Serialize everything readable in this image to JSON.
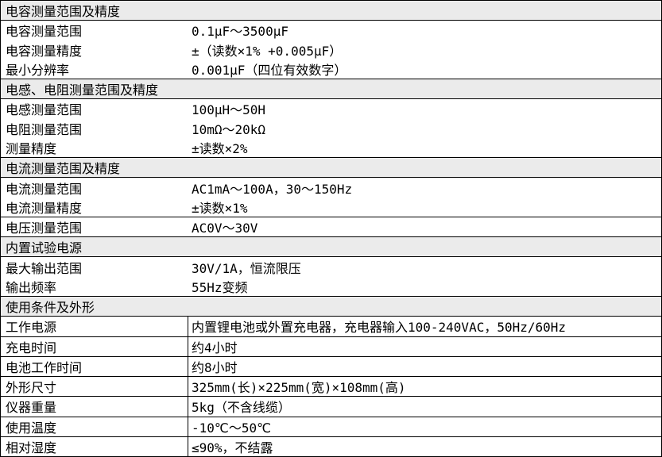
{
  "colors": {
    "header_bg": "#ebebeb",
    "border": "#000000",
    "background": "#ffffff",
    "text": "#000000"
  },
  "table": {
    "sections": [
      {
        "header": "电容测量范围及精度",
        "rows": [
          {
            "label": "电容测量范围",
            "value": "0.1μF～3500μF"
          },
          {
            "label": "电容测量精度",
            "value": "±（读数×1% +0.005μF）"
          },
          {
            "label": "最小分辨率",
            "value": "0.001μF（四位有效数字）"
          }
        ]
      },
      {
        "header": "电感、电阻测量范围及精度",
        "rows": [
          {
            "label": "电感测量范围",
            "value": "100μH～50H"
          },
          {
            "label": "电阻测量范围",
            "value": "10mΩ～20kΩ"
          },
          {
            "label": "测量精度",
            "value": "±读数×2%"
          }
        ]
      },
      {
        "header": "电流测量范围及精度",
        "rows": [
          {
            "label": "电流测量范围",
            "value": "AC1mA～100A，30～150Hz"
          },
          {
            "label": "电流测量精度",
            "value": "±读数×1%"
          }
        ]
      },
      {
        "header": null,
        "rows": [
          {
            "label": "电压测量范围",
            "value": "AC0V～30V"
          }
        ]
      },
      {
        "header": "内置试验电源",
        "rows": [
          {
            "label": "最大输出范围",
            "value": "30V/1A，恒流限压"
          },
          {
            "label": "输出频率",
            "value": "55Hz变频"
          }
        ]
      },
      {
        "header": "使用条件及外形",
        "rows": [
          {
            "label": "工作电源",
            "value": "内置锂电池或外置充电器，充电器输入100-240VAC，50Hz/60Hz"
          },
          {
            "label": "充电时间",
            "value": "约4小时"
          },
          {
            "label": "电池工作时间",
            "value": "约8小时"
          },
          {
            "label": "外形尺寸",
            "value": "325mm(长)×225mm(宽)×108mm(高)"
          },
          {
            "label": "仪器重量",
            "value": "5kg（不含线缆）"
          },
          {
            "label": "使用温度",
            "value": "-10℃～50℃"
          },
          {
            "label": "相对湿度",
            "value": "≤90%，不结露"
          }
        ]
      }
    ]
  }
}
